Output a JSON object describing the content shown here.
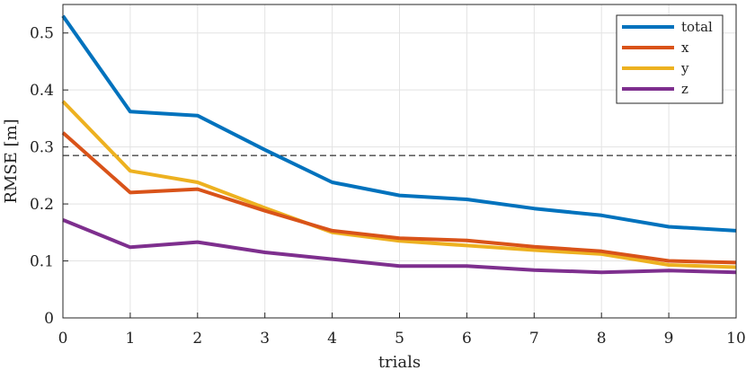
{
  "chart_data": {
    "type": "line",
    "xlabel": "trials",
    "ylabel": "RMSE [m]",
    "xlim": [
      0,
      10
    ],
    "ylim": [
      0,
      0.55
    ],
    "xticks": [
      0,
      1,
      2,
      3,
      4,
      5,
      6,
      7,
      8,
      9,
      10
    ],
    "xtick_labels": [
      "0",
      "1",
      "2",
      "3",
      "4",
      "5",
      "6",
      "7",
      "8",
      "9",
      "10"
    ],
    "yticks": [
      0,
      0.1,
      0.2,
      0.3,
      0.4,
      0.5
    ],
    "ytick_labels": [
      "0",
      "0.1",
      "0.2",
      "0.3",
      "0.4",
      "0.5"
    ],
    "grid": true,
    "legend_position": "top-right",
    "x": [
      0,
      1,
      2,
      3,
      4,
      5,
      6,
      7,
      8,
      9,
      10
    ],
    "series": [
      {
        "name": "total",
        "color": "#0072BD",
        "values": [
          0.53,
          0.362,
          0.355,
          0.295,
          0.238,
          0.215,
          0.208,
          0.192,
          0.18,
          0.16,
          0.153
        ]
      },
      {
        "name": "x",
        "color": "#D95319",
        "values": [
          0.325,
          0.22,
          0.226,
          0.188,
          0.153,
          0.14,
          0.136,
          0.125,
          0.117,
          0.1,
          0.097
        ]
      },
      {
        "name": "y",
        "color": "#EDB120",
        "values": [
          0.38,
          0.258,
          0.238,
          0.193,
          0.15,
          0.135,
          0.127,
          0.119,
          0.112,
          0.093,
          0.089
        ]
      },
      {
        "name": "z",
        "color": "#7E2F8E",
        "values": [
          0.172,
          0.124,
          0.133,
          0.115,
          0.103,
          0.091,
          0.091,
          0.084,
          0.08,
          0.083,
          0.08
        ]
      }
    ],
    "reference_line": {
      "y": 0.285,
      "style": "dashed",
      "color": "#000000"
    }
  }
}
